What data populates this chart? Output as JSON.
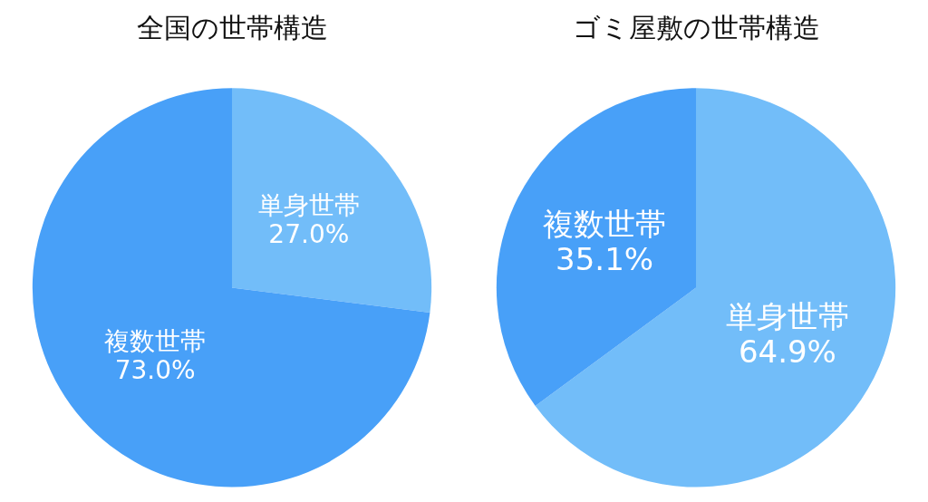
{
  "chart_data": [
    {
      "type": "pie",
      "title": "全国の世帯構造",
      "categories": [
        "単身世帯",
        "複数世帯"
      ],
      "values": [
        27.0,
        73.0
      ],
      "value_labels": [
        "27.0%",
        "73.0%"
      ],
      "colors": [
        "#72bdf9",
        "#48a0f8"
      ],
      "legend": false
    },
    {
      "type": "pie",
      "title": "ゴミ屋敷の世帯構造",
      "categories": [
        "単身世帯",
        "複数世帯"
      ],
      "values": [
        64.9,
        35.1
      ],
      "value_labels": [
        "64.9%",
        "35.1%"
      ],
      "colors": [
        "#72bdf9",
        "#48a0f8"
      ],
      "legend": false
    }
  ]
}
